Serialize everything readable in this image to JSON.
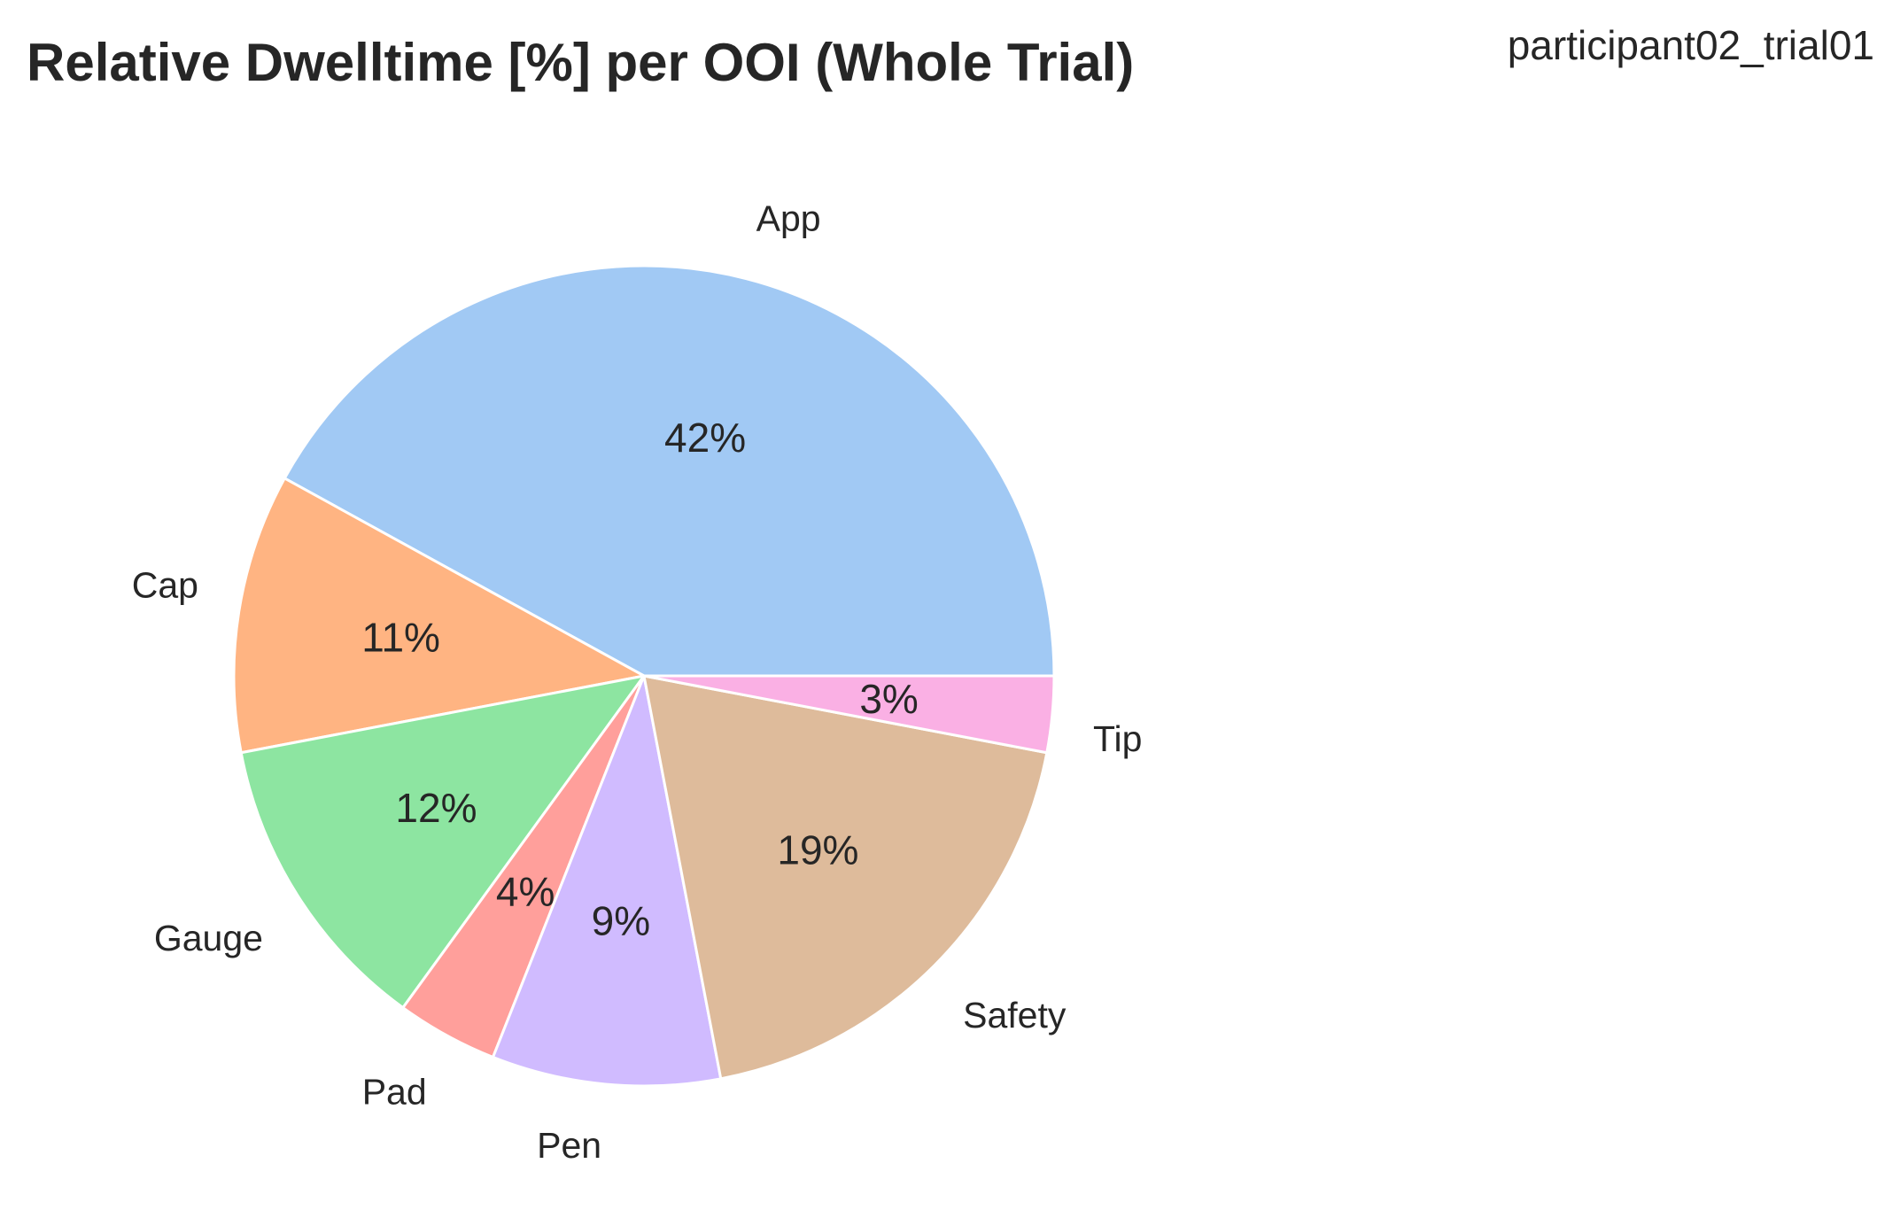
{
  "chart_data": {
    "type": "pie",
    "title": "Relative Dwelltime [%] per OOI (Whole Trial)",
    "annotation": "participant02_trial01",
    "start_angle_deg": 0,
    "direction": "counterclockwise",
    "slices": [
      {
        "label": "App",
        "value": 42,
        "pct_label": "42%",
        "color": "#a1c9f4"
      },
      {
        "label": "Cap",
        "value": 11,
        "pct_label": "11%",
        "color": "#ffb482"
      },
      {
        "label": "Gauge",
        "value": 12,
        "pct_label": "12%",
        "color": "#8de5a1"
      },
      {
        "label": "Pad",
        "value": 4,
        "pct_label": "4%",
        "color": "#ff9f9b"
      },
      {
        "label": "Pen",
        "value": 9,
        "pct_label": "9%",
        "color": "#d0bbff"
      },
      {
        "label": "Safety",
        "value": 19,
        "pct_label": "19%",
        "color": "#debb9b"
      },
      {
        "label": "Tip",
        "value": 3,
        "pct_label": "3%",
        "color": "#fab0e4"
      }
    ]
  }
}
